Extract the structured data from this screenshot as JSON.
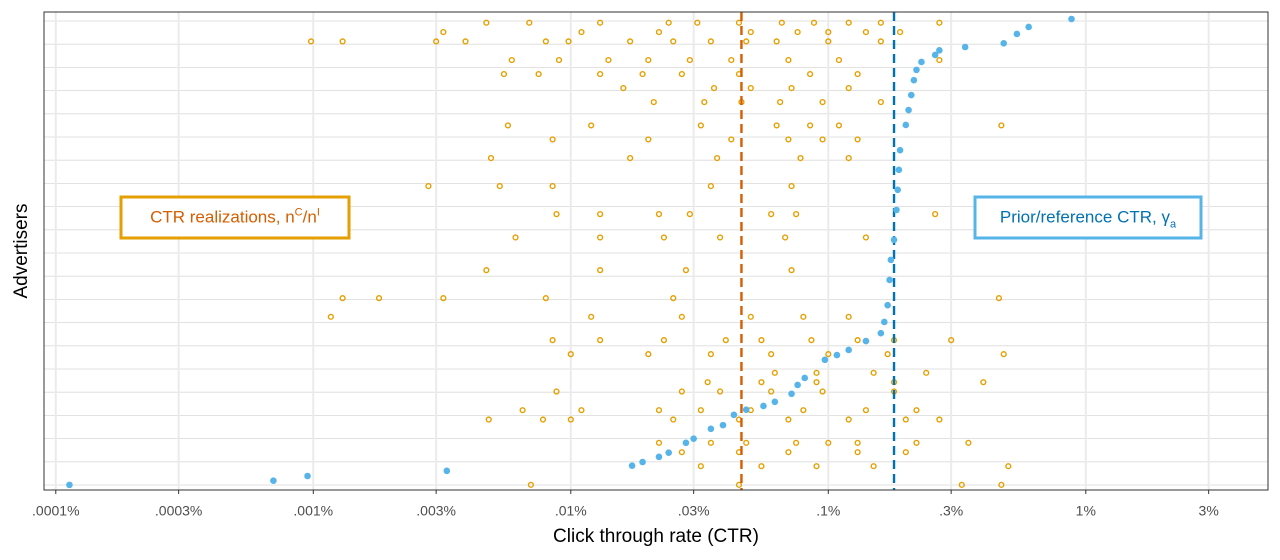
{
  "chart_data": {
    "type": "scatter",
    "x_label": "Click through rate (CTR)",
    "y_label": "Advertisers",
    "xscale": "log",
    "xlim": [
      9e-05,
      5.1
    ],
    "ylim": [
      -1.1,
      101.3
    ],
    "xticks": [
      {
        "value": 0.0001,
        "label": ".0001%"
      },
      {
        "value": 0.0003,
        "label": ".0003%"
      },
      {
        "value": 0.001,
        "label": ".001%"
      },
      {
        "value": 0.003,
        "label": ".003%"
      },
      {
        "value": 0.01,
        "label": ".01%"
      },
      {
        "value": 0.03,
        "label": ".03%"
      },
      {
        "value": 0.1,
        "label": ".1%"
      },
      {
        "value": 0.3,
        "label": ".3%"
      },
      {
        "value": 1,
        "label": "1%"
      },
      {
        "value": 3,
        "label": "3%"
      }
    ],
    "grid": true,
    "series": [
      {
        "color": "#e69f00",
        "marker": "hollow",
        "x": [
          0.0047,
          0.0069,
          0.013,
          0.024,
          0.031,
          0.045,
          0.066,
          0.088,
          0.12,
          0.16,
          0.27,
          0.0032,
          0.011,
          0.022,
          0.05,
          0.076,
          0.1,
          0.14,
          0.19,
          0.00098,
          0.0013,
          0.003,
          0.0039,
          0.008,
          0.0098,
          0.017,
          0.025,
          0.035,
          0.048,
          0.063,
          0.1,
          0.16,
          0.0059,
          0.009,
          0.014,
          0.02,
          0.029,
          0.042,
          0.07,
          0.11,
          0.27,
          0.0055,
          0.0075,
          0.013,
          0.019,
          0.027,
          0.045,
          0.085,
          0.13,
          0.016,
          0.036,
          0.05,
          0.072,
          0.12,
          0.021,
          0.033,
          0.046,
          0.065,
          0.095,
          0.16,
          0.0057,
          0.012,
          0.032,
          0.063,
          0.085,
          0.11,
          0.47,
          0.0085,
          0.02,
          0.042,
          0.07,
          0.095,
          0.13,
          0.0049,
          0.017,
          0.037,
          0.078,
          0.12,
          0.0028,
          0.0053,
          0.0085,
          0.035,
          0.072,
          0.0088,
          0.013,
          0.022,
          0.029,
          0.06,
          0.075,
          0.26,
          0.0061,
          0.013,
          0.023,
          0.038,
          0.068,
          0.14,
          0.0047,
          0.013,
          0.028,
          0.072,
          0.0013,
          0.0018,
          0.0032,
          0.008,
          0.025,
          0.46,
          0.00117,
          0.012,
          0.027,
          0.05,
          0.08,
          0.12,
          0.0085,
          0.013,
          0.023,
          0.04,
          0.055,
          0.086,
          0.13,
          0.18,
          0.3,
          0.01,
          0.02,
          0.035,
          0.06,
          0.1,
          0.17,
          0.48,
          0.062,
          0.09,
          0.15,
          0.24,
          0.034,
          0.055,
          0.09,
          0.18,
          0.4,
          0.0088,
          0.027,
          0.038,
          0.06,
          0.095,
          0.18,
          0.0065,
          0.011,
          0.022,
          0.032,
          0.05,
          0.08,
          0.14,
          0.22,
          0.0048,
          0.0078,
          0.01,
          0.025,
          0.045,
          0.07,
          0.12,
          0.2,
          0.27,
          0.022,
          0.035,
          0.048,
          0.075,
          0.1,
          0.13,
          0.22,
          0.35,
          0.027,
          0.045,
          0.07,
          0.13,
          0.2,
          0.032,
          0.055,
          0.09,
          0.15,
          0.5,
          0.007,
          0.045,
          0.33,
          0.47
        ],
        "y": [
          99,
          99,
          99,
          99,
          99,
          99,
          99,
          99,
          99,
          99,
          99,
          97,
          97,
          97,
          97,
          97,
          97,
          97,
          97,
          95,
          95,
          95,
          95,
          95,
          95,
          95,
          95,
          95,
          95,
          95,
          95,
          95,
          91,
          91,
          91,
          91,
          91,
          91,
          91,
          91,
          91,
          88,
          88,
          88,
          88,
          88,
          88,
          88,
          88,
          85,
          85,
          85,
          85,
          85,
          82,
          82,
          82,
          82,
          82,
          82,
          77,
          77,
          77,
          77,
          77,
          77,
          77,
          74,
          74,
          74,
          74,
          74,
          74,
          70,
          70,
          70,
          70,
          70,
          64,
          64,
          64,
          64,
          64,
          58,
          58,
          58,
          58,
          58,
          58,
          58,
          53,
          53,
          53,
          53,
          53,
          53,
          46,
          46,
          46,
          46,
          40,
          40,
          40,
          40,
          40,
          40,
          36,
          36,
          36,
          36,
          36,
          36,
          31,
          31,
          31,
          31,
          31,
          31,
          31,
          31,
          31,
          28,
          28,
          28,
          28,
          28,
          28,
          28,
          24,
          24,
          24,
          24,
          22,
          22,
          22,
          22,
          22,
          20,
          20,
          20,
          20,
          20,
          20,
          16,
          16,
          16,
          16,
          16,
          16,
          16,
          16,
          14,
          14,
          14,
          14,
          14,
          14,
          14,
          14,
          14,
          9,
          9,
          9,
          9,
          9,
          9,
          9,
          9,
          7,
          7,
          7,
          7,
          7,
          4,
          4,
          4,
          4,
          4,
          0,
          0,
          0,
          0
        ]
      },
      {
        "color": "#56b4e9",
        "marker": "filled",
        "x": [
          0.000113,
          0.0007,
          0.00095,
          0.0033,
          0.0173,
          0.019,
          0.022,
          0.024,
          0.028,
          0.03,
          0.035,
          0.039,
          0.043,
          0.048,
          0.056,
          0.062,
          0.072,
          0.076,
          0.081,
          0.097,
          0.108,
          0.12,
          0.14,
          0.16,
          0.165,
          0.17,
          0.173,
          0.175,
          0.18,
          0.184,
          0.186,
          0.188,
          0.19,
          0.2,
          0.205,
          0.21,
          0.215,
          0.22,
          0.23,
          0.26,
          0.27,
          0.34,
          0.48,
          0.54,
          0.6,
          0.88
        ],
        "y": [
          0,
          0.9,
          1.9,
          3,
          4.1,
          4.9,
          6,
          6.9,
          9,
          9.9,
          12,
          12.8,
          15,
          16.1,
          16.9,
          17.8,
          19.5,
          21.4,
          22.9,
          26.8,
          27.8,
          28.9,
          30.8,
          32.5,
          34.9,
          38.5,
          43.9,
          48.2,
          52.5,
          58.9,
          63.2,
          67.5,
          71.7,
          77.1,
          80.3,
          83.5,
          86.7,
          88.9,
          90.6,
          92.1,
          93.1,
          93.8,
          94.6,
          96.6,
          98.1,
          99.8
        ]
      }
    ],
    "reference_lines": [
      {
        "x": 0.046,
        "color": "#d55e00"
      },
      {
        "x": 0.18,
        "color": "#0072b2"
      }
    ],
    "annotations": [
      {
        "color": "#d55e00",
        "border": "#e69f00",
        "segments": [
          {
            "text": "CTR realizations, n"
          },
          {
            "sup": "C"
          },
          {
            "text": "/n"
          },
          {
            "sup": "I"
          }
        ]
      },
      {
        "color": "#0072b2",
        "border": "#56b4e9",
        "segments": [
          {
            "text": "Prior/reference CTR, γ"
          },
          {
            "sub": "a"
          }
        ]
      }
    ]
  }
}
